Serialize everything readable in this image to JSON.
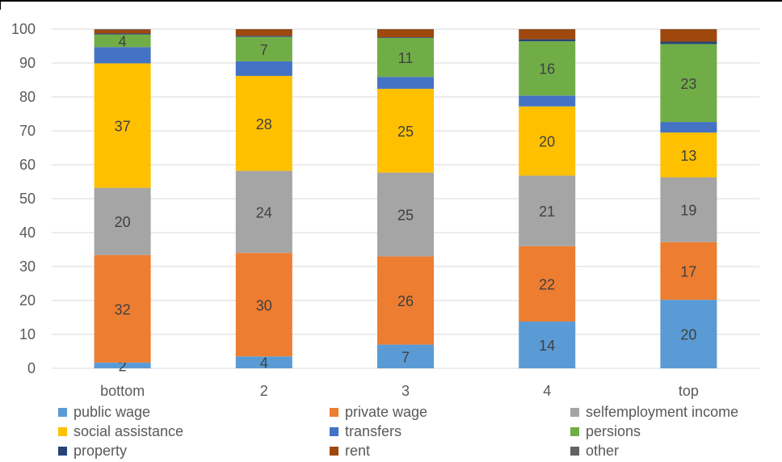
{
  "chart_data": {
    "type": "bar",
    "stacked": true,
    "title": "",
    "xlabel": "",
    "ylabel": "",
    "ylim": [
      0,
      100
    ],
    "yticks": [
      0,
      10,
      20,
      30,
      40,
      50,
      60,
      70,
      80,
      90,
      100
    ],
    "grid": true,
    "legend_position": "bottom",
    "categories": [
      "bottom",
      "2",
      "3",
      "4",
      "top"
    ],
    "series": [
      {
        "name": "public wage",
        "color": "#5B9BD5",
        "values": [
          1.7,
          3.5,
          7,
          13.8,
          20.2
        ],
        "labels": [
          "2",
          "4",
          "7",
          "14",
          "20"
        ]
      },
      {
        "name": "private wage",
        "color": "#ED7D31",
        "values": [
          31.7,
          30.5,
          26,
          22.2,
          17
        ],
        "labels": [
          "32",
          "30",
          "26",
          "22",
          "17"
        ]
      },
      {
        "name": "selfemployment income",
        "color": "#A5A5A5",
        "values": [
          19.8,
          24.2,
          24.7,
          20.8,
          19.1
        ],
        "labels": [
          "20",
          "24",
          "25",
          "21",
          "19"
        ]
      },
      {
        "name": "social assistance",
        "color": "#FFC000",
        "values": [
          36.7,
          28,
          24.7,
          20.4,
          13.2
        ],
        "labels": [
          "37",
          "28",
          "25",
          "20",
          "13"
        ]
      },
      {
        "name": "transfers",
        "color": "#4472C4",
        "values": [
          4.8,
          4.3,
          3.5,
          3.2,
          3.1
        ],
        "labels": [
          "",
          "",
          "",
          "",
          ""
        ]
      },
      {
        "name": "persions",
        "color": "#70AD47",
        "values": [
          3.7,
          7.2,
          11.5,
          16,
          23
        ],
        "labels": [
          "4",
          "7",
          "11",
          "16",
          "23"
        ]
      },
      {
        "name": "property",
        "color": "#264478",
        "values": [
          0.3,
          0.3,
          0.2,
          0.6,
          0.7
        ],
        "labels": [
          "",
          "",
          "",
          "",
          ""
        ]
      },
      {
        "name": "rent",
        "color": "#9E480E",
        "values": [
          1.1,
          1.9,
          2.3,
          2.9,
          3.6
        ],
        "labels": [
          "",
          "",
          "",
          "",
          ""
        ]
      },
      {
        "name": "other",
        "color": "#636363",
        "values": [
          0.2,
          0.1,
          0.1,
          0.1,
          0.1
        ],
        "labels": [
          "",
          "",
          "",
          "",
          ""
        ]
      }
    ]
  }
}
